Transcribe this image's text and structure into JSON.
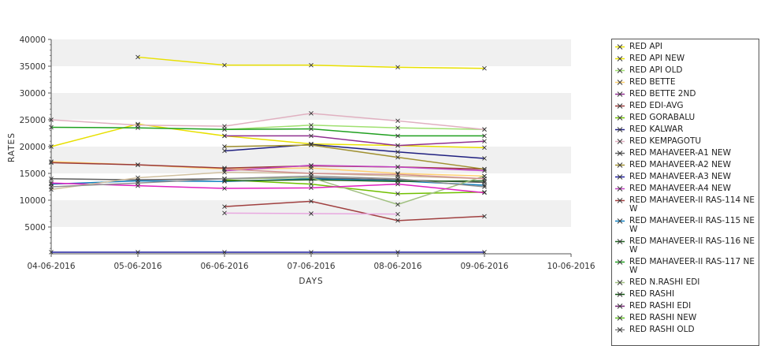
{
  "chart_data": {
    "type": "line",
    "title": "",
    "xlabel": "DAYS",
    "ylabel": "RATES",
    "x_ticks": [
      "04-06-2016",
      "05-06-2016",
      "06-06-2016",
      "07-06-2016",
      "08-06-2016",
      "09-06-2016",
      "10-06-2016"
    ],
    "y_ticks": [
      5000,
      10000,
      15000,
      20000,
      25000,
      30000,
      35000,
      40000
    ],
    "ylim": [
      0,
      40000
    ],
    "grid": "alternating horizontal bands",
    "legend_position": "right",
    "series": [
      {
        "name": "RED API",
        "color": "#e8e000",
        "values": [
          null,
          36700,
          35200,
          35200,
          34800,
          34600
        ]
      },
      {
        "name": "RED API NEW",
        "color": "#e8e000",
        "values": [
          20000,
          24200,
          22000,
          20500,
          20200,
          19800
        ]
      },
      {
        "name": "RED API OLD",
        "color": "#a0e070",
        "values": [
          null,
          null,
          23200,
          24000,
          23500,
          23200
        ]
      },
      {
        "name": "RED BETTE",
        "color": "#ffd070",
        "values": [
          17200,
          16600,
          15800,
          16000,
          15000,
          14500
        ]
      },
      {
        "name": "RED BETTE 2ND",
        "color": "#903090",
        "values": [
          null,
          null,
          22000,
          22000,
          20200,
          21000
        ]
      },
      {
        "name": "RED EDI-AVG",
        "color": "#9a3a3a",
        "values": [
          17000,
          16600,
          16000,
          16400,
          16200,
          15800
        ]
      },
      {
        "name": "RED GORABALU",
        "color": "#70c000",
        "values": [
          null,
          null,
          13800,
          13000,
          11200,
          11500
        ]
      },
      {
        "name": "RED KALWAR",
        "color": "#202080",
        "values": [
          null,
          null,
          19200,
          20400,
          19000,
          17800
        ]
      },
      {
        "name": "RED KEMPAGOTU",
        "color": "#e0b0c0",
        "values": [
          25000,
          24000,
          23800,
          26200,
          24800,
          23200
        ]
      },
      {
        "name": "RED MAHAVEER-A1 NEW",
        "color": "#606060",
        "values": [
          14000,
          13800,
          14000,
          14200,
          13800,
          13300
        ]
      },
      {
        "name": "RED MAHAVEER-A2 NEW",
        "color": "#a09030",
        "values": [
          null,
          null,
          20000,
          20300,
          18000,
          15800
        ]
      },
      {
        "name": "RED MAHAVEER-A3 NEW",
        "color": "#2020a0",
        "values": [
          300,
          300,
          300,
          300,
          300,
          300
        ]
      },
      {
        "name": "RED MAHAVEER-A4 NEW",
        "color": "#c040c0",
        "values": [
          null,
          null,
          15500,
          16500,
          16200,
          15500
        ]
      },
      {
        "name": "RED MAHAVEER-II RAS-114 NEW",
        "color": "#a04040",
        "values": [
          null,
          null,
          8800,
          9800,
          6200,
          7000
        ]
      },
      {
        "name": "RED MAHAVEER-II RAS-115 NEW",
        "color": "#1080c0",
        "values": [
          13000,
          13600,
          13500,
          14000,
          13600,
          12800
        ]
      },
      {
        "name": "RED MAHAVEER-II RAS-116 NEW",
        "color": "#206020",
        "values": [
          null,
          null,
          13600,
          13800,
          13500,
          13600
        ]
      },
      {
        "name": "RED MAHAVEER-II RAS-117 NEW",
        "color": "#20a020",
        "values": [
          23600,
          23500,
          23200,
          23300,
          22000,
          22000
        ]
      },
      {
        "name": "RED N.RASHI EDI",
        "color": "#a0c080",
        "values": [
          null,
          null,
          14000,
          14200,
          9200,
          14500
        ]
      },
      {
        "name": "RED RASHI",
        "color": "#105010",
        "values": [
          null,
          null,
          null,
          null,
          null,
          null
        ]
      },
      {
        "name": "RED RASHI EDI",
        "color": "#702070",
        "values": [
          null,
          null,
          null,
          null,
          null,
          null
        ]
      },
      {
        "name": "RED RASHI NEW",
        "color": "#60c020",
        "values": [
          null,
          null,
          null,
          null,
          null,
          null
        ]
      },
      {
        "name": "RED RASHI OLD",
        "color": "#808080",
        "values": [
          null,
          null,
          null,
          null,
          null,
          null
        ]
      },
      {
        "name": "",
        "color": "#e020c0",
        "values": [
          13200,
          12700,
          12200,
          12300,
          13000,
          11400
        ]
      },
      {
        "name": "",
        "color": "#e8a8e0",
        "values": [
          null,
          null,
          7600,
          7500,
          7400,
          null
        ]
      },
      {
        "name": "",
        "color": "#d0c0a0",
        "values": [
          12000,
          14200,
          15200,
          15000,
          14500,
          14000
        ]
      },
      {
        "name": "",
        "color": "#d09090",
        "values": [
          null,
          null,
          15800,
          15000,
          14800,
          14000
        ]
      },
      {
        "name": "",
        "color": "#909090",
        "values": [
          12500,
          13200,
          14000,
          14500,
          14000,
          12500
        ]
      }
    ]
  }
}
